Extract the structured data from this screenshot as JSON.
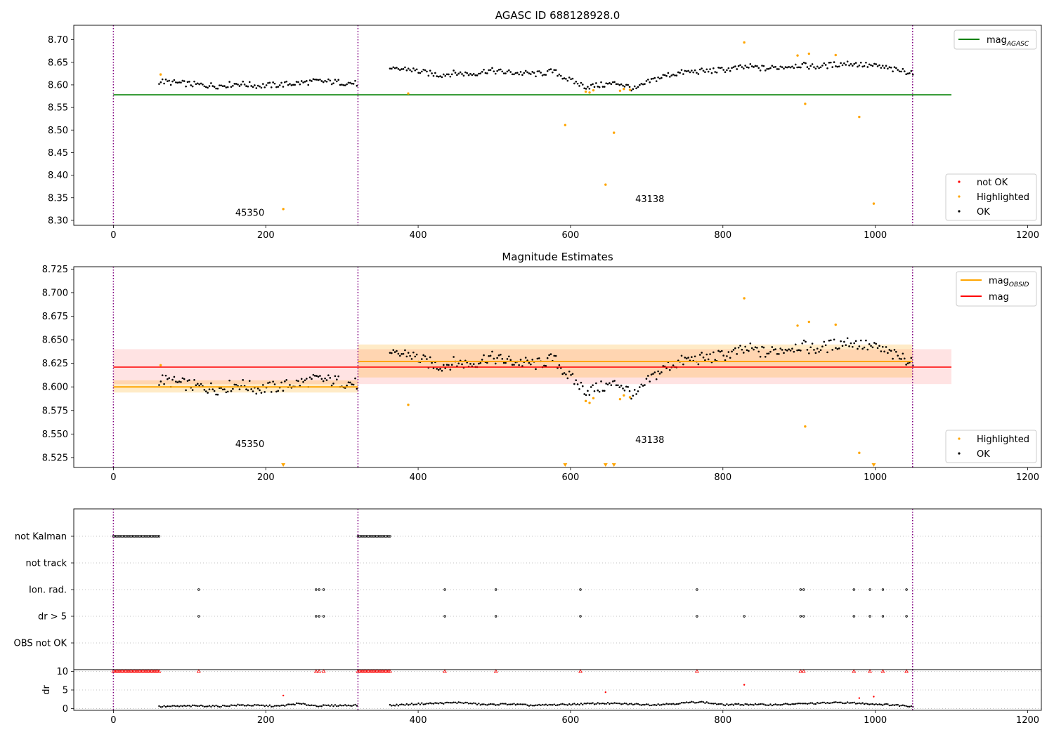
{
  "chart_data": [
    {
      "type": "scatter",
      "title": "AGASC ID 688128928.0",
      "xlim": [
        -52,
        1218
      ],
      "ylim": [
        8.289,
        8.732
      ],
      "xticks": [
        0,
        200,
        400,
        600,
        800,
        1000,
        1200
      ],
      "yticks": [
        8.3,
        8.35,
        8.4,
        8.45,
        8.5,
        8.55,
        8.6,
        8.65,
        8.7
      ],
      "ytick_labels": [
        "8.30",
        "8.35",
        "8.40",
        "8.45",
        "8.50",
        "8.55",
        "8.60",
        "8.65",
        "8.70"
      ],
      "vlines": [
        0,
        321,
        1049
      ],
      "hlines": [
        {
          "y": 8.578,
          "x0": 0,
          "x1": 1100,
          "color": "#008000"
        }
      ],
      "annotations": [
        {
          "text": "45350",
          "x": 160,
          "y": 8.31
        },
        {
          "text": "43138",
          "x": 685,
          "y": 8.34
        }
      ],
      "legend_upper": {
        "position": "upper right",
        "entries": [
          {
            "label": "mag",
            "sub": "AGASC",
            "color": "#008000",
            "kind": "line"
          }
        ]
      },
      "legend_lower": {
        "position": "lower right",
        "entries": [
          {
            "label": "not OK",
            "color": "#ff0000",
            "kind": "marker"
          },
          {
            "label": "Highlighted",
            "color": "#ffa500",
            "kind": "marker"
          },
          {
            "label": "OK",
            "color": "#000000",
            "kind": "marker"
          }
        ]
      },
      "series": [
        {
          "name": "OK",
          "color": "#000000",
          "segments": [
            {
              "x0": 60,
              "x1": 320,
              "step": 2.2,
              "y": [
                8.608,
                8.604,
                8.6,
                8.598,
                8.603,
                8.598,
                8.6,
                8.604,
                8.608,
                8.606,
                8.603
              ]
            },
            {
              "x0": 363,
              "x1": 1050,
              "step": 2.2,
              "y": [
                8.632,
                8.636,
                8.628,
                8.622,
                8.626,
                8.624,
                8.632,
                8.628,
                8.626,
                8.624,
                8.63,
                8.61,
                8.596,
                8.6,
                8.604,
                8.59,
                8.61,
                8.622,
                8.628,
                8.63,
                8.632,
                8.636,
                8.64,
                8.636,
                8.64,
                8.644,
                8.64,
                8.644,
                8.648,
                8.644,
                8.64,
                8.632,
                8.628
              ]
            }
          ]
        },
        {
          "name": "Highlighted",
          "color": "#ffa500",
          "points": [
            [
              62,
              8.623
            ],
            [
              223,
              8.325
            ],
            [
              387,
              8.581
            ],
            [
              593,
              8.511
            ],
            [
              620,
              8.585
            ],
            [
              625,
              8.583
            ],
            [
              630,
              8.588
            ],
            [
              646,
              8.379
            ],
            [
              657,
              8.494
            ],
            [
              665,
              8.587
            ],
            [
              670,
              8.591
            ],
            [
              678,
              8.589
            ],
            [
              828,
              8.694
            ],
            [
              898,
              8.665
            ],
            [
              908,
              8.558
            ],
            [
              913,
              8.669
            ],
            [
              948,
              8.666
            ],
            [
              979,
              8.529
            ],
            [
              998,
              8.337
            ]
          ]
        }
      ]
    },
    {
      "type": "scatter",
      "title": "Magnitude Estimates",
      "xlim": [
        -52,
        1218
      ],
      "ylim": [
        8.5145,
        8.7275
      ],
      "xticks": [
        0,
        200,
        400,
        600,
        800,
        1000,
        1200
      ],
      "yticks": [
        8.525,
        8.55,
        8.575,
        8.6,
        8.625,
        8.65,
        8.675,
        8.7,
        8.725
      ],
      "ytick_labels": [
        "8.525",
        "8.550",
        "8.575",
        "8.600",
        "8.625",
        "8.650",
        "8.675",
        "8.700",
        "8.725"
      ],
      "vlines": [
        0,
        321,
        1049
      ],
      "mag": {
        "value": 8.621,
        "lo": 8.603,
        "hi": 8.64,
        "x0": 0,
        "x1": 1100,
        "color": "#ff0000"
      },
      "mag_obsid": [
        {
          "value": 8.6,
          "lo": 8.594,
          "hi": 8.607,
          "x0": 0,
          "x1": 321
        },
        {
          "value": 8.627,
          "lo": 8.61,
          "hi": 8.645,
          "x0": 321,
          "x1": 1049
        }
      ],
      "annotations": [
        {
          "text": "45350",
          "x": 160,
          "y": 8.536
        },
        {
          "text": "43138",
          "x": 685,
          "y": 8.5405
        }
      ],
      "legend_upper": {
        "position": "upper right",
        "entries": [
          {
            "label": "mag",
            "sub": "OBSID",
            "color": "#ffa500",
            "kind": "line"
          },
          {
            "label": "mag",
            "color": "#ff0000",
            "kind": "line"
          }
        ]
      },
      "legend_lower": {
        "position": "lower right",
        "entries": [
          {
            "label": "Highlighted",
            "color": "#ffa500",
            "kind": "marker"
          },
          {
            "label": "OK",
            "color": "#000000",
            "kind": "marker"
          }
        ]
      },
      "series": [
        {
          "name": "Highlighted",
          "color": "#ffa500",
          "points": [
            [
              62,
              8.623
            ],
            [
              387,
              8.581
            ],
            [
              620,
              8.585
            ],
            [
              625,
              8.583
            ],
            [
              630,
              8.588
            ],
            [
              665,
              8.587
            ],
            [
              670,
              8.591
            ],
            [
              678,
              8.589
            ],
            [
              828,
              8.694
            ],
            [
              898,
              8.665
            ],
            [
              908,
              8.558
            ],
            [
              913,
              8.669
            ],
            [
              948,
              8.666
            ],
            [
              979,
              8.53
            ]
          ]
        },
        {
          "name": "Highlighted (below axis)",
          "color": "#ffa500",
          "markers": "triangle-down",
          "x": [
            223,
            593,
            646,
            657,
            998
          ]
        }
      ]
    },
    {
      "type": "scatter",
      "title": "",
      "xlim": [
        -52,
        1218
      ],
      "vlines": [
        0,
        321,
        1049
      ],
      "flag_rows": [
        "not Kalman",
        "not track",
        "Ion. rad.",
        "dr > 5",
        "OBS not OK"
      ],
      "flags": {
        "not Kalman": [
          [
            0,
            60
          ],
          [
            321,
            363
          ]
        ],
        "not track": [],
        "Ion. rad.": [
          112,
          266,
          270,
          276,
          435,
          502,
          613,
          766,
          902,
          906,
          972,
          993,
          1010,
          1041
        ],
        "dr > 5": [
          112,
          266,
          270,
          276,
          435,
          502,
          613,
          766,
          828,
          902,
          906,
          972,
          993,
          1010,
          1041
        ],
        "OBS not OK": []
      },
      "dr": {
        "ylabel": "dr",
        "ylim": [
          -0.5,
          10.5
        ],
        "yticks": [
          0,
          5,
          10
        ],
        "capped_value": 10,
        "capped_x": [
          [
            0,
            60
          ],
          [
            321,
            363
          ],
          112,
          266,
          270,
          276,
          435,
          502,
          613,
          766,
          902,
          906,
          972,
          993,
          1010,
          1041
        ],
        "outliers": [
          [
            223,
            3.5
          ],
          [
            646,
            4.4
          ],
          [
            828,
            6.4
          ],
          [
            979,
            2.8
          ],
          [
            998,
            3.2
          ]
        ],
        "segments": [
          {
            "x0": 60,
            "x1": 320,
            "y": [
              0.5,
              0.6,
              0.7,
              0.6,
              0.9,
              0.8,
              0.6,
              1.3,
              0.7,
              0.8,
              0.9
            ]
          },
          {
            "x0": 363,
            "x1": 1050,
            "y": [
              0.8,
              1.2,
              1.4,
              1.6,
              1.0,
              1.2,
              0.8,
              1.0,
              1.2,
              1.4,
              1.2,
              1.0,
              1.3,
              1.8,
              1.0,
              1.1,
              1.0,
              1.2,
              1.4,
              1.6,
              1.3,
              1.0,
              0.6
            ]
          }
        ]
      },
      "xticks": [
        0,
        200,
        400,
        600,
        800,
        1000,
        1200
      ]
    }
  ]
}
